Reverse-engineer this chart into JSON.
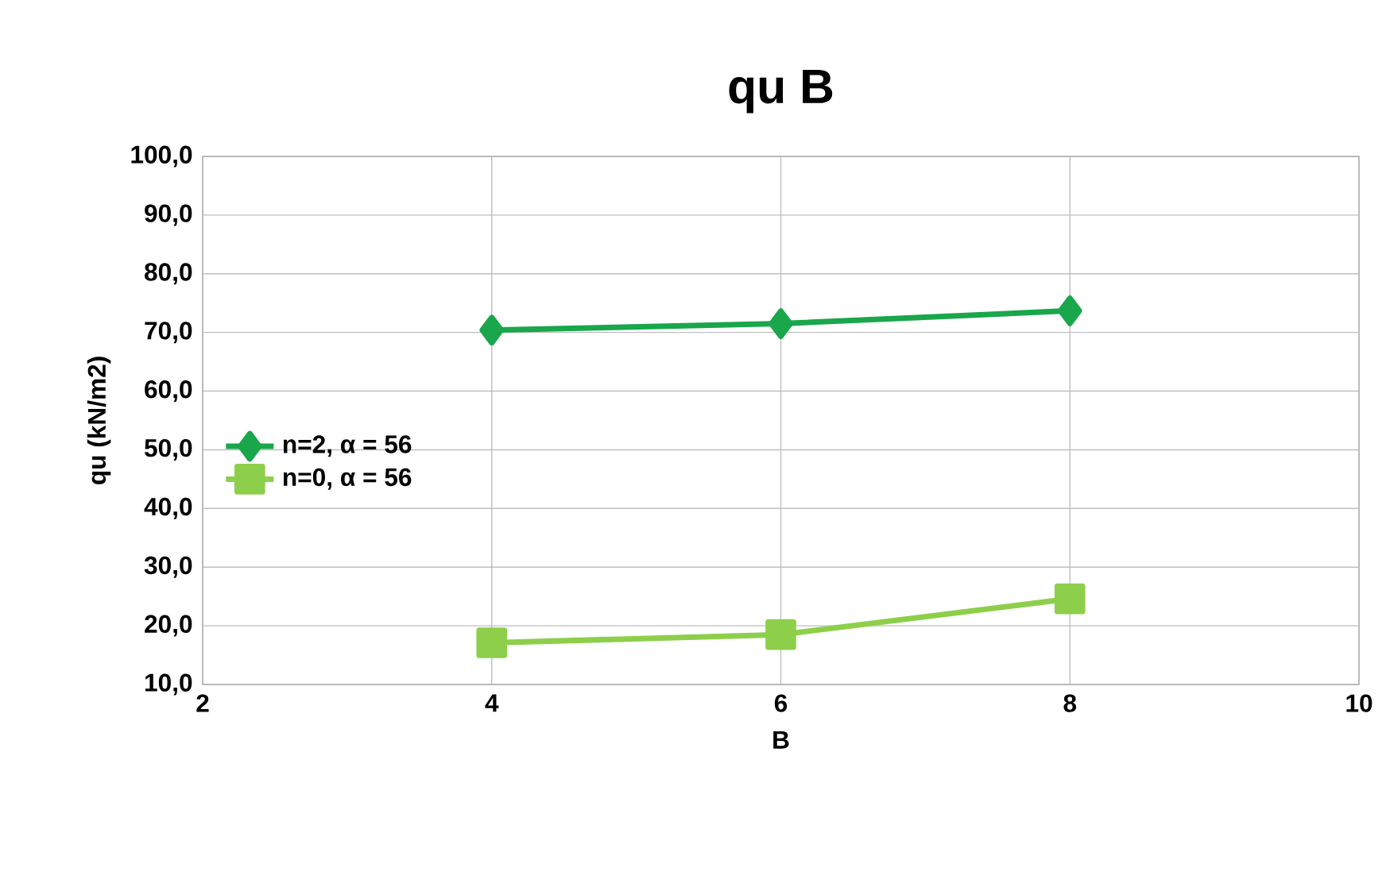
{
  "chart_data": {
    "type": "line",
    "title": "qu B",
    "xlabel": "B",
    "ylabel": "qu (kN/m2)",
    "x": [
      4,
      6,
      8
    ],
    "series": [
      {
        "name": "n=2, α = 56",
        "color": "#1aa64b",
        "marker": "diamond",
        "values": [
          70.4,
          71.5,
          73.7
        ]
      },
      {
        "name": "n=0, α = 56",
        "color": "#8dcf4a",
        "marker": "square",
        "values": [
          17.1,
          18.5,
          24.6
        ]
      }
    ],
    "xlim": [
      2,
      10
    ],
    "xticks": [
      2,
      4,
      6,
      8,
      10
    ],
    "ylim": [
      10,
      100
    ],
    "yticks": [
      {
        "value": 10,
        "label": "10,0"
      },
      {
        "value": 20,
        "label": "20,0"
      },
      {
        "value": 30,
        "label": "30,0"
      },
      {
        "value": 40,
        "label": "40,0"
      },
      {
        "value": 50,
        "label": "50,0"
      },
      {
        "value": 60,
        "label": "60,0"
      },
      {
        "value": 70,
        "label": "70,0"
      },
      {
        "value": 80,
        "label": "80,0"
      },
      {
        "value": 90,
        "label": "90,0"
      },
      {
        "value": 100,
        "label": "100,0"
      }
    ],
    "grid": true,
    "legend": "left",
    "line_style": "solid"
  }
}
